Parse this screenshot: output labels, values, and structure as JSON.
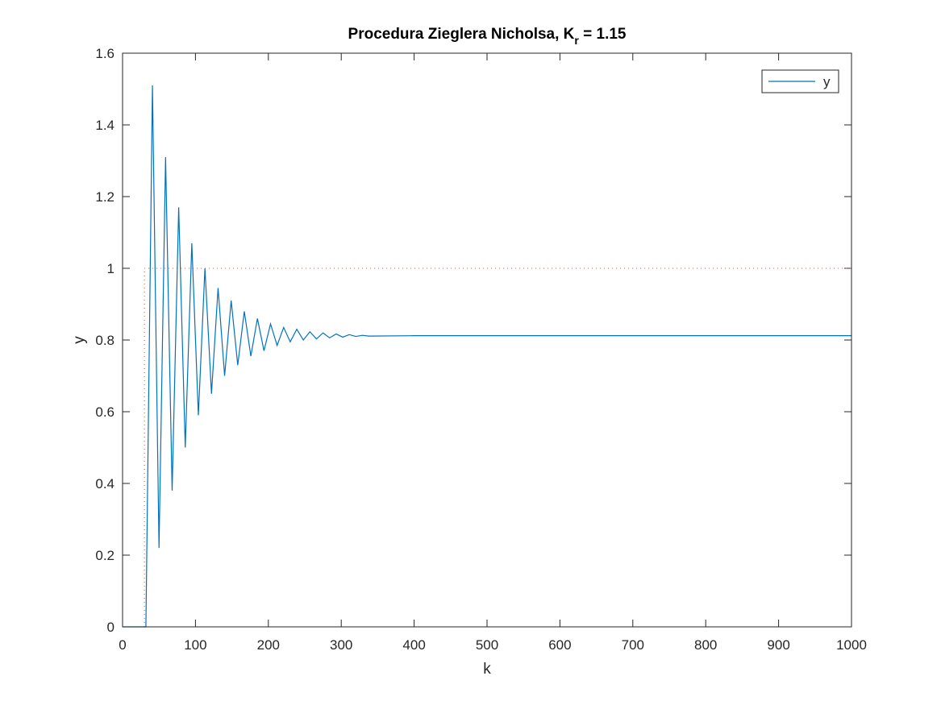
{
  "chart_data": {
    "type": "line",
    "title": {
      "main": "Procedura Zieglera Nicholsa, K",
      "subscript": "r",
      "suffix": " =  1.15"
    },
    "xlabel": "k",
    "ylabel": "y",
    "xlim": [
      0,
      1000
    ],
    "ylim": [
      0,
      1.6
    ],
    "xticks": [
      0,
      100,
      200,
      300,
      400,
      500,
      600,
      700,
      800,
      900,
      1000
    ],
    "yticks": [
      0,
      0.2,
      0.4,
      0.6,
      0.8,
      1,
      1.2,
      1.4,
      1.6
    ],
    "legend": "top-right",
    "series": [
      {
        "name": "y",
        "color": "#0072bd",
        "x": [
          0,
          32,
          41,
          50,
          59,
          68,
          77,
          86,
          95,
          104,
          113,
          122,
          131,
          140,
          149,
          158,
          167,
          176,
          185,
          194,
          203,
          212,
          221,
          230,
          239,
          248,
          257,
          266,
          275,
          284,
          293,
          302,
          311,
          320,
          329,
          338,
          400,
          1000
        ],
        "values": [
          0,
          0,
          1.51,
          0.22,
          1.31,
          0.38,
          1.17,
          0.5,
          1.07,
          0.59,
          1.0,
          0.65,
          0.945,
          0.7,
          0.91,
          0.73,
          0.88,
          0.755,
          0.86,
          0.77,
          0.845,
          0.785,
          0.835,
          0.795,
          0.83,
          0.8,
          0.823,
          0.803,
          0.82,
          0.806,
          0.817,
          0.808,
          0.815,
          0.81,
          0.813,
          0.811,
          0.812,
          0.812
        ]
      }
    ],
    "guide": {
      "color": "#d95319",
      "x": [
        30,
        30,
        1000
      ],
      "values": [
        0,
        1,
        1
      ]
    }
  }
}
